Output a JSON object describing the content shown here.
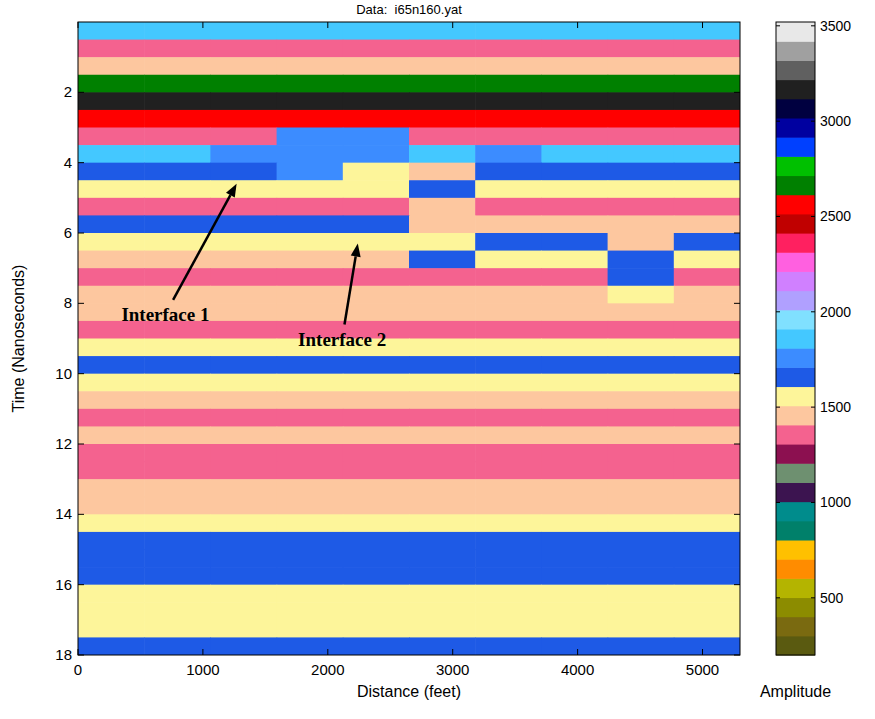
{
  "chart_data": {
    "type": "heatmap",
    "title": "Data:  i65n160.yat",
    "x_label": "Distance (feet)",
    "y_label": "Time (Nanoseconds)",
    "xlim": [
      0,
      5300
    ],
    "ylim": [
      18,
      0
    ],
    "xticks": [
      0,
      1000,
      2000,
      3000,
      4000,
      5000
    ],
    "yticks": [
      2,
      4,
      6,
      8,
      10,
      12,
      14,
      16,
      18
    ],
    "x_edges": [
      0,
      530,
      1060,
      1590,
      2120,
      2650,
      3180,
      3710,
      4240,
      4770,
      5300
    ],
    "y_edges": [
      0,
      0.5,
      1,
      1.5,
      2,
      2.5,
      3,
      3.5,
      4,
      4.5,
      5,
      5.5,
      6,
      6.5,
      7,
      7.5,
      8,
      8.5,
      9,
      9.5,
      10,
      10.5,
      11,
      11.5,
      12,
      12.5,
      13,
      13.5,
      14,
      14.5,
      15,
      15.5,
      16,
      16.5,
      17,
      17.5,
      18
    ],
    "cells": [
      [
        1850,
        1850,
        1850,
        1850,
        1850,
        1850,
        1850,
        1850,
        1850,
        1850
      ],
      [
        1350,
        1350,
        1350,
        1350,
        1350,
        1350,
        1350,
        1350,
        1350,
        1350
      ],
      [
        1450,
        1450,
        1450,
        1450,
        1450,
        1450,
        1450,
        1450,
        1450,
        1450
      ],
      [
        2650,
        2650,
        2650,
        2650,
        2650,
        2650,
        2650,
        2650,
        2650,
        2650
      ],
      [
        3150,
        3150,
        3150,
        3150,
        3150,
        3150,
        3150,
        3150,
        3150,
        3150
      ],
      [
        2550,
        2550,
        2550,
        2550,
        2550,
        2550,
        2550,
        2550,
        2550,
        2550
      ],
      [
        1350,
        1350,
        1350,
        1750,
        1750,
        1350,
        1350,
        1350,
        1350,
        1350
      ],
      [
        1850,
        1850,
        1800,
        1800,
        1750,
        1850,
        1800,
        1850,
        1850,
        1850
      ],
      [
        1700,
        1700,
        1700,
        1750,
        1550,
        1450,
        1700,
        1650,
        1650,
        1650
      ],
      [
        1550,
        1550,
        1550,
        1550,
        1550,
        1700,
        1550,
        1550,
        1550,
        1550
      ],
      [
        1350,
        1350,
        1350,
        1350,
        1400,
        1450,
        1350,
        1350,
        1350,
        1350
      ],
      [
        1650,
        1650,
        1650,
        1650,
        1650,
        1450,
        1450,
        1450,
        1450,
        1450
      ],
      [
        1550,
        1550,
        1550,
        1550,
        1550,
        1550,
        1700,
        1700,
        1450,
        1700
      ],
      [
        1450,
        1450,
        1450,
        1450,
        1450,
        1700,
        1550,
        1550,
        1650,
        1550
      ],
      [
        1400,
        1400,
        1400,
        1400,
        1400,
        1400,
        1400,
        1400,
        1700,
        1400
      ],
      [
        1450,
        1450,
        1450,
        1450,
        1450,
        1450,
        1450,
        1450,
        1550,
        1450
      ],
      [
        1450,
        1450,
        1450,
        1450,
        1450,
        1450,
        1450,
        1450,
        1450,
        1450
      ],
      [
        1400,
        1400,
        1400,
        1400,
        1400,
        1400,
        1400,
        1400,
        1400,
        1400
      ],
      [
        1550,
        1550,
        1550,
        1550,
        1550,
        1550,
        1550,
        1550,
        1550,
        1550
      ],
      [
        1650,
        1650,
        1650,
        1650,
        1650,
        1650,
        1650,
        1650,
        1650,
        1650
      ],
      [
        1550,
        1550,
        1550,
        1550,
        1550,
        1550,
        1550,
        1550,
        1550,
        1550
      ],
      [
        1450,
        1450,
        1450,
        1450,
        1450,
        1450,
        1450,
        1450,
        1450,
        1450
      ],
      [
        1350,
        1350,
        1350,
        1350,
        1350,
        1350,
        1350,
        1350,
        1350,
        1350
      ],
      [
        1450,
        1450,
        1450,
        1450,
        1450,
        1450,
        1450,
        1450,
        1450,
        1450
      ],
      [
        1400,
        1400,
        1400,
        1400,
        1400,
        1400,
        1400,
        1400,
        1400,
        1400
      ],
      [
        1350,
        1350,
        1350,
        1350,
        1350,
        1350,
        1350,
        1350,
        1350,
        1350
      ],
      [
        1450,
        1450,
        1450,
        1450,
        1450,
        1450,
        1450,
        1450,
        1450,
        1450
      ],
      [
        1450,
        1450,
        1450,
        1450,
        1450,
        1450,
        1450,
        1450,
        1450,
        1450
      ],
      [
        1550,
        1550,
        1550,
        1550,
        1550,
        1550,
        1550,
        1550,
        1550,
        1550
      ],
      [
        1700,
        1700,
        1700,
        1700,
        1700,
        1700,
        1700,
        1700,
        1700,
        1700
      ],
      [
        1650,
        1650,
        1650,
        1650,
        1650,
        1650,
        1650,
        1650,
        1650,
        1650
      ],
      [
        1700,
        1700,
        1700,
        1700,
        1700,
        1700,
        1700,
        1700,
        1700,
        1700
      ],
      [
        1550,
        1550,
        1550,
        1550,
        1550,
        1550,
        1550,
        1550,
        1550,
        1550
      ],
      [
        1550,
        1550,
        1550,
        1550,
        1550,
        1550,
        1550,
        1550,
        1550,
        1550
      ],
      [
        1550,
        1550,
        1550,
        1550,
        1550,
        1550,
        1550,
        1550,
        1550,
        1550
      ],
      [
        1700,
        1700,
        1700,
        1700,
        1700,
        1700,
        1700,
        1700,
        1700,
        1700
      ]
    ],
    "colorbar": {
      "label": "Amplitude",
      "range": [
        200,
        3520
      ],
      "ticks": [
        500,
        1000,
        1500,
        2000,
        2500,
        3000,
        3500
      ]
    },
    "annotations": [
      {
        "text": "Interface 1",
        "x": 700,
        "y": 8.3,
        "arrow_to": [
          1270,
          4.6
        ]
      },
      {
        "text": "Interface 2",
        "x": 2115,
        "y": 9.0,
        "arrow_to": [
          2240,
          6.3
        ]
      }
    ]
  }
}
